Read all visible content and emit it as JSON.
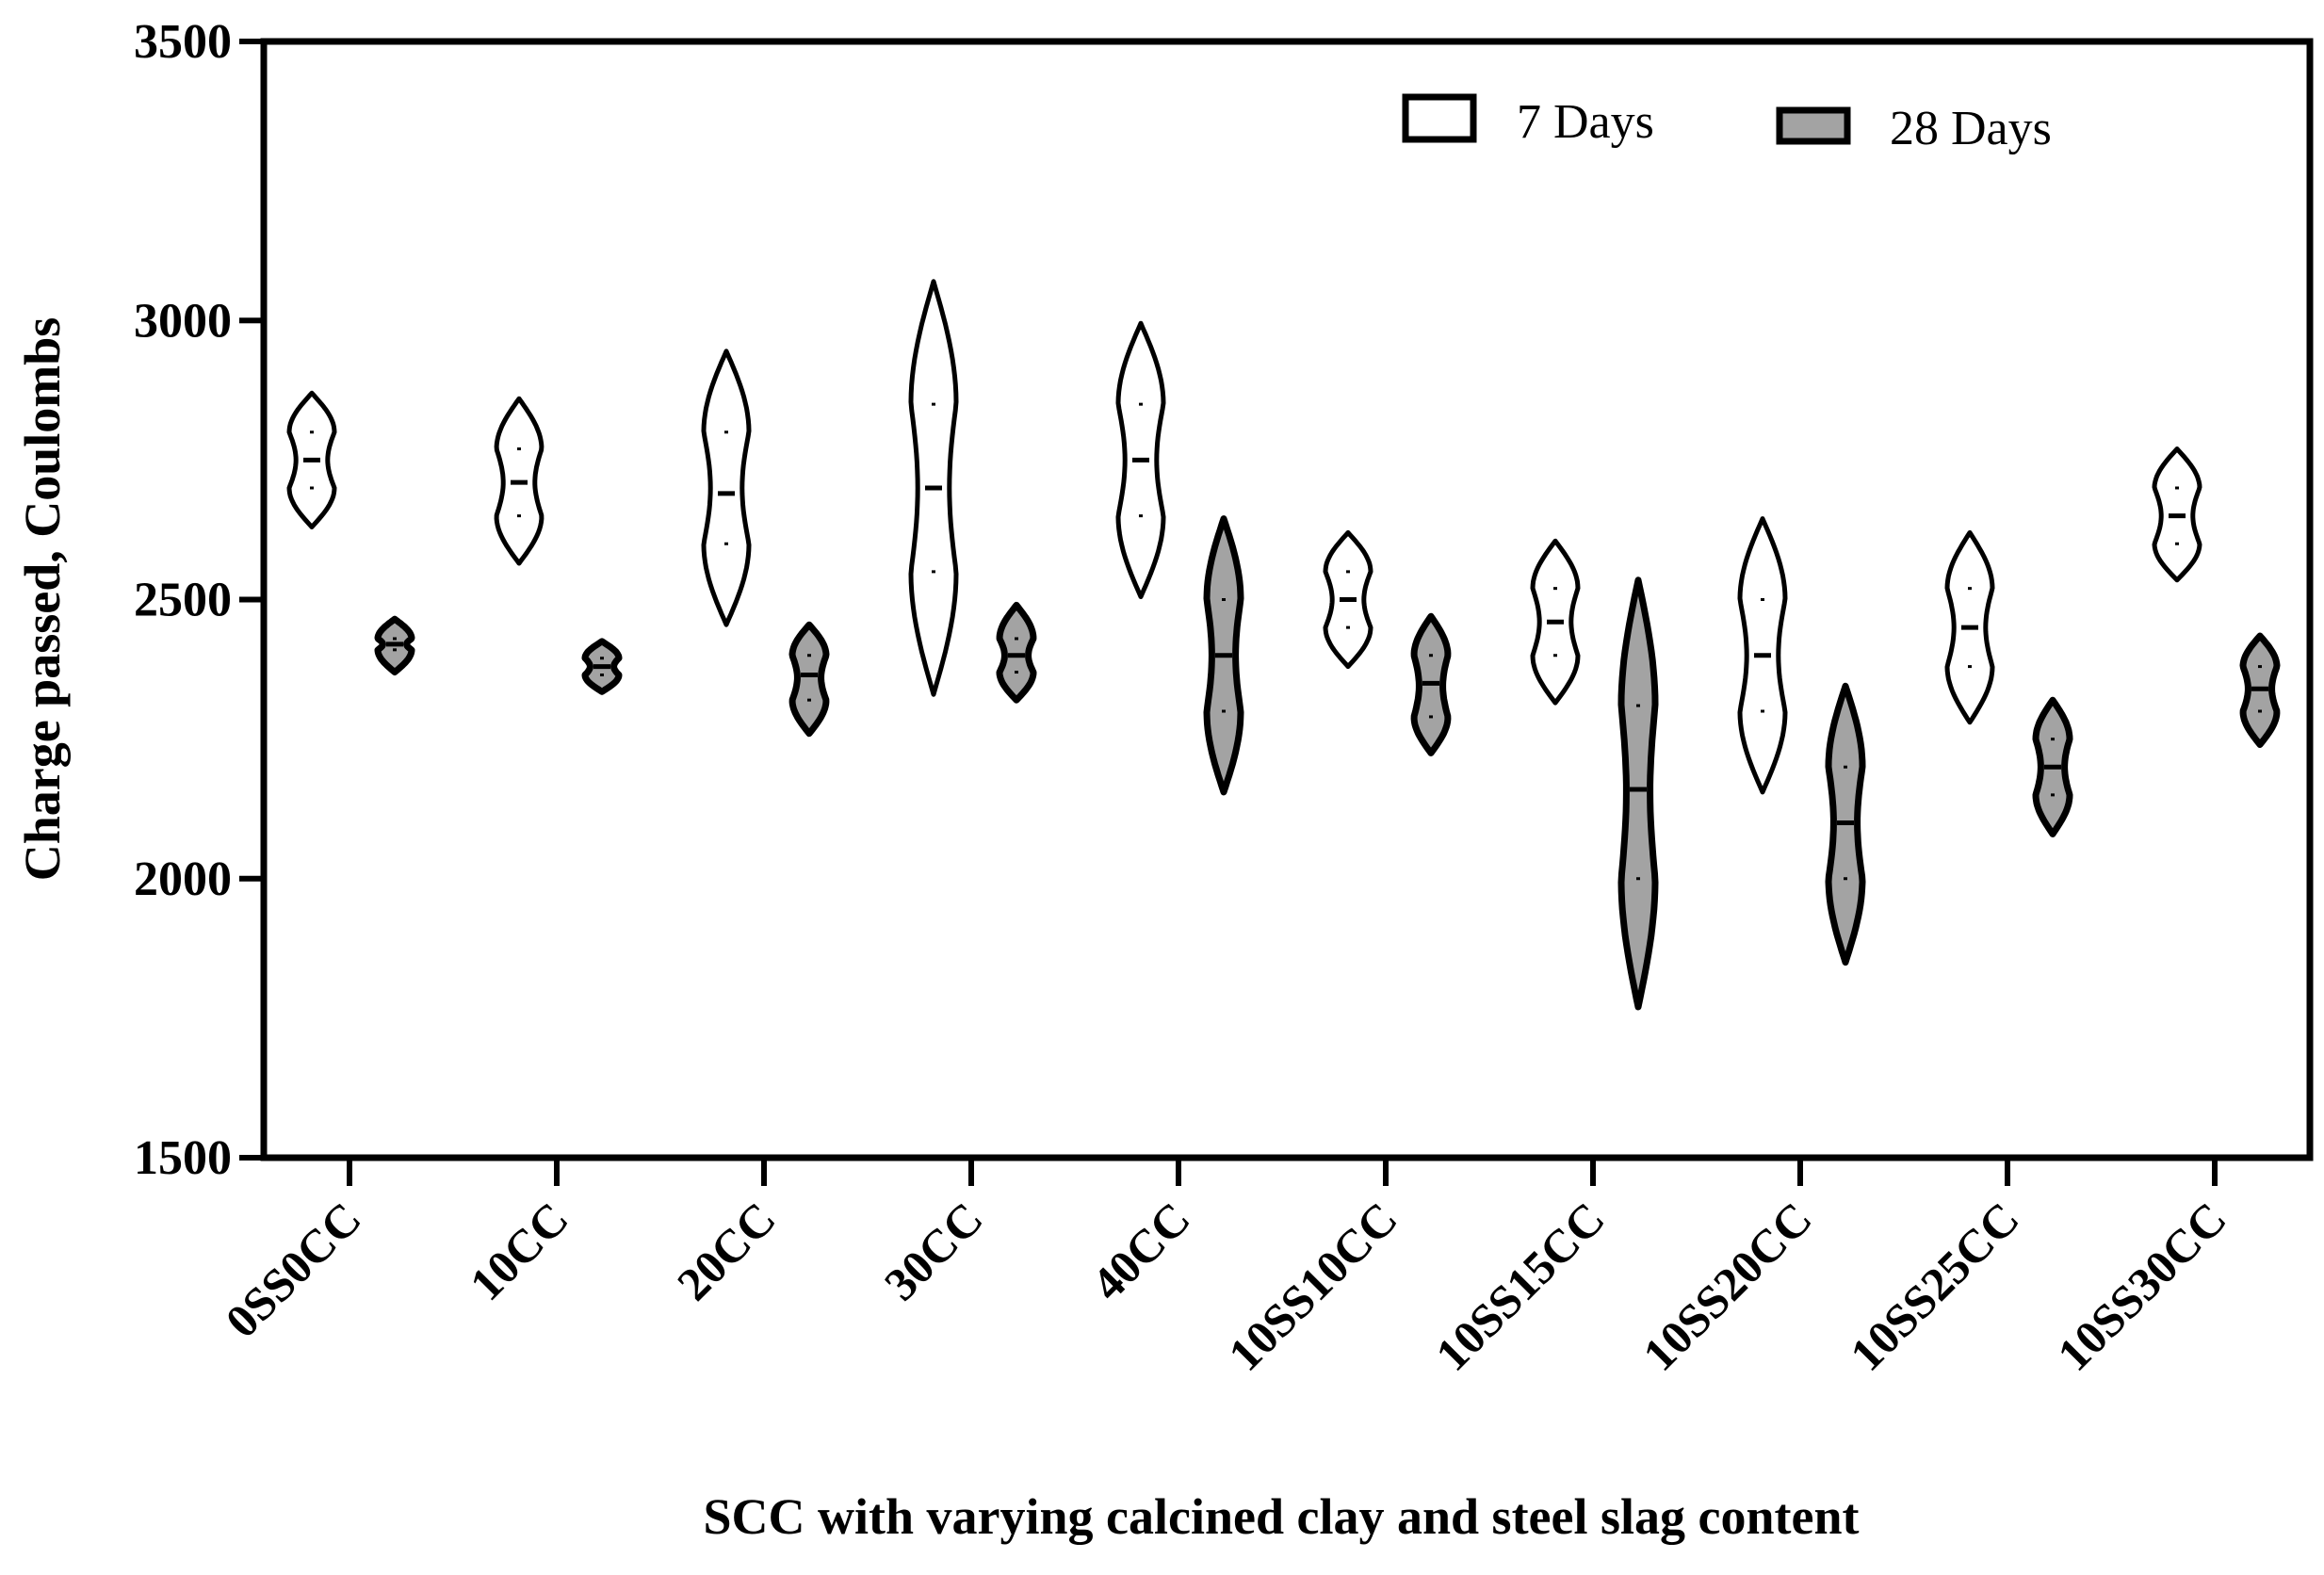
{
  "chart_data": {
    "type": "violin",
    "title": "",
    "xlabel": "SCC with varying calcined clay and steel slag content",
    "ylabel": "Charge passed, Coulombs",
    "ylim": [
      1500,
      3500
    ],
    "yticks": [
      1500,
      2000,
      2500,
      3000,
      3500
    ],
    "categories": [
      "0SS0CC",
      "10CC",
      "20CC",
      "30CC",
      "40CC",
      "10SS10CC",
      "10SS15CC",
      "10SS20CC",
      "10SS25CC",
      "10SS30CC"
    ],
    "legend_position": "top-right",
    "series": [
      {
        "name": "7 Days",
        "fill": "#ffffff",
        "stroke": "#000000",
        "min": [
          2630,
          2565,
          2455,
          2330,
          2505,
          2380,
          2315,
          2155,
          2280,
          2535
        ],
        "max": [
          2870,
          2860,
          2945,
          3070,
          2995,
          2620,
          2605,
          2645,
          2620,
          2770
        ],
        "q1": [
          2700,
          2650,
          2600,
          2550,
          2650,
          2450,
          2400,
          2300,
          2380,
          2600
        ],
        "median": [
          2750,
          2710,
          2690,
          2700,
          2750,
          2500,
          2460,
          2400,
          2450,
          2650
        ],
        "q3": [
          2800,
          2770,
          2800,
          2850,
          2850,
          2550,
          2520,
          2500,
          2520,
          2700
        ]
      },
      {
        "name": "28 Days",
        "fill": "#a3a3a3",
        "stroke": "#000000",
        "min": [
          2370,
          2335,
          2260,
          2320,
          2155,
          2225,
          1770,
          1850,
          2080,
          2240
        ],
        "max": [
          2465,
          2425,
          2455,
          2490,
          2645,
          2470,
          2535,
          2345,
          2320,
          2435
        ],
        "q1": [
          2410,
          2365,
          2320,
          2370,
          2300,
          2290,
          2000,
          2000,
          2150,
          2300
        ],
        "median": [
          2420,
          2380,
          2365,
          2400,
          2400,
          2350,
          2160,
          2100,
          2200,
          2340
        ],
        "q3": [
          2430,
          2395,
          2400,
          2430,
          2500,
          2400,
          2310,
          2200,
          2250,
          2380
        ]
      }
    ]
  }
}
